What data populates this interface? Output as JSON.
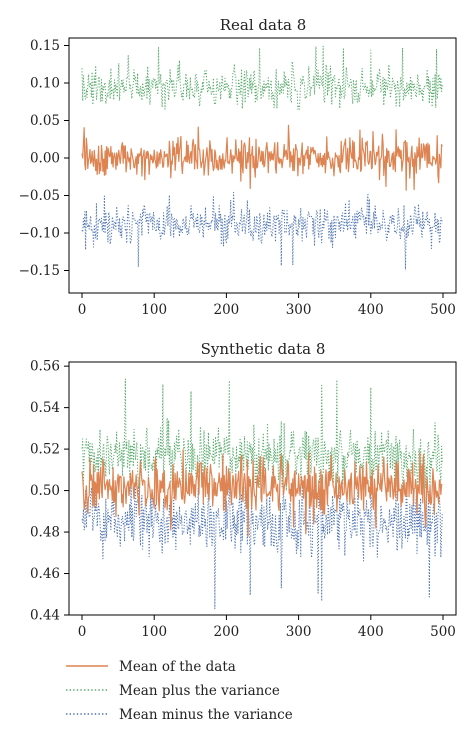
{
  "chart_data": [
    {
      "type": "line",
      "title": "Real data 8",
      "xlabel": "",
      "ylabel": "",
      "xlim": [
        -18,
        518
      ],
      "ylim": [
        -0.18,
        0.16
      ],
      "xticks": [
        0,
        100,
        200,
        300,
        400,
        500
      ],
      "yticks": [
        -0.15,
        -0.1,
        -0.05,
        0.0,
        0.05,
        0.1,
        0.15
      ],
      "xtick_labels": [
        "0",
        "100",
        "200",
        "300",
        "400",
        "500"
      ],
      "ytick_labels": [
        "−0.15",
        "−0.10",
        "−0.05",
        "0.00",
        "0.05",
        "0.10",
        "0.15"
      ],
      "x_range": [
        0,
        499
      ],
      "series": [
        {
          "name": "Mean of the data",
          "color": "#dd8452",
          "style": "solid",
          "baseline": 0.0,
          "amplitude": 0.012,
          "min": -0.043,
          "max": 0.045
        },
        {
          "name": "Mean plus the variance",
          "color": "#55a868",
          "style": "dotted",
          "baseline": 0.095,
          "amplitude": 0.013,
          "min": 0.065,
          "max": 0.15
        },
        {
          "name": "Mean minus the variance",
          "color": "#4c72b0",
          "style": "dotted",
          "baseline": -0.088,
          "amplitude": 0.012,
          "min": -0.16,
          "max": -0.045
        }
      ]
    },
    {
      "type": "line",
      "title": "Synthetic data 8",
      "xlabel": "",
      "ylabel": "",
      "xlim": [
        -18,
        518
      ],
      "ylim": [
        0.44,
        0.562
      ],
      "xticks": [
        0,
        100,
        200,
        300,
        400,
        500
      ],
      "yticks": [
        0.44,
        0.46,
        0.48,
        0.5,
        0.52,
        0.54,
        0.56
      ],
      "xtick_labels": [
        "0",
        "100",
        "200",
        "300",
        "400",
        "500"
      ],
      "ytick_labels": [
        "0.44",
        "0.46",
        "0.48",
        "0.50",
        "0.52",
        "0.54",
        "0.56"
      ],
      "x_range": [
        0,
        499
      ],
      "series": [
        {
          "name": "Mean of the data",
          "color": "#dd8452",
          "style": "solid",
          "baseline": 0.502,
          "amplitude": 0.006,
          "min": 0.478,
          "max": 0.52
        },
        {
          "name": "Mean plus the variance",
          "color": "#55a868",
          "style": "dotted",
          "baseline": 0.516,
          "amplitude": 0.007,
          "min": 0.5,
          "max": 0.556
        },
        {
          "name": "Mean minus the variance",
          "color": "#4c72b0",
          "style": "dotted",
          "baseline": 0.486,
          "amplitude": 0.008,
          "min": 0.443,
          "max": 0.502
        }
      ]
    }
  ],
  "legend": {
    "placement": "bottom",
    "items": [
      {
        "label": "Mean of the data",
        "color": "#dd8452",
        "style": "solid"
      },
      {
        "label": "Mean plus the variance",
        "color": "#55a868",
        "style": "dotted"
      },
      {
        "label": "Mean minus the variance",
        "color": "#4c72b0",
        "style": "dotted"
      }
    ]
  }
}
